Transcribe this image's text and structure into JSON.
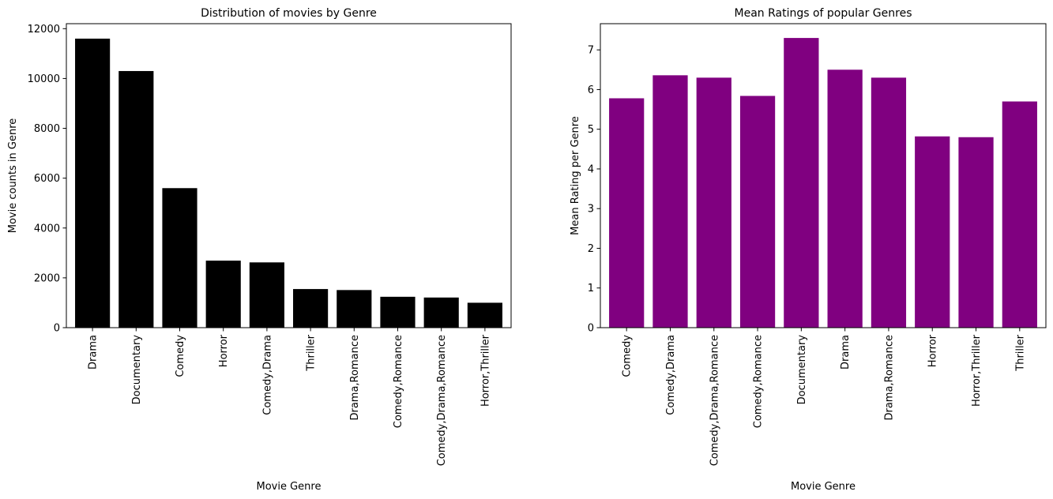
{
  "chart_data": [
    {
      "type": "bar",
      "title": "Distribution of movies by Genre",
      "xlabel": "Movie Genre",
      "ylabel": "Movie counts in Genre",
      "categories": [
        "Drama",
        "Documentary",
        "Comedy",
        "Horror",
        "Comedy,Drama",
        "Thriller",
        "Drama,Romance",
        "Comedy,Romance",
        "Comedy,Drama,Romance",
        "Horror,Thriller"
      ],
      "values": [
        11600,
        10300,
        5600,
        2690,
        2620,
        1550,
        1510,
        1240,
        1210,
        1000
      ],
      "ylim": [
        0,
        12200
      ],
      "yticks": [
        0,
        2000,
        4000,
        6000,
        8000,
        10000,
        12000
      ],
      "bar_color": "#000000",
      "grid": false
    },
    {
      "type": "bar",
      "title": "Mean Ratings of popular Genres",
      "xlabel": "Movie Genre",
      "ylabel": "Mean Rating per Genre",
      "categories": [
        "Comedy",
        "Comedy,Drama",
        "Comedy,Drama,Romance",
        "Comedy,Romance",
        "Documentary",
        "Drama",
        "Drama,Romance",
        "Horror",
        "Horror,Thriller",
        "Thriller"
      ],
      "values": [
        5.78,
        6.36,
        6.3,
        5.84,
        7.3,
        6.5,
        6.3,
        4.82,
        4.8,
        5.7
      ],
      "ylim": [
        0,
        7.66
      ],
      "yticks": [
        0,
        1,
        2,
        3,
        4,
        5,
        6,
        7
      ],
      "bar_color": "#800080",
      "grid": false
    }
  ]
}
